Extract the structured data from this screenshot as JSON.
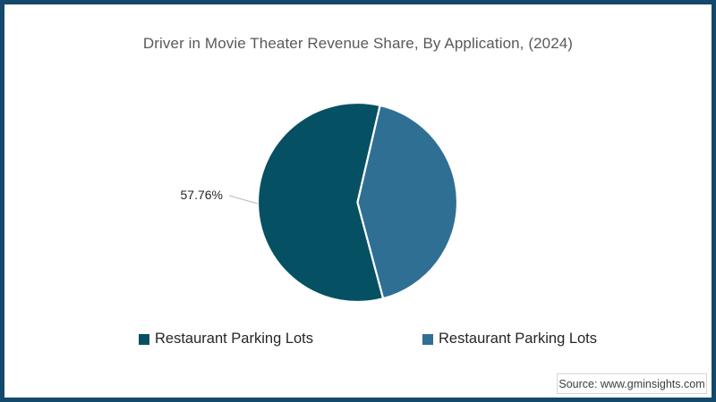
{
  "title": "Driver in Movie Theater Revenue Share, By Application, (2024)",
  "source": "Source: www.gminsights.com",
  "colors": {
    "frame_border": "#14496b",
    "title_text": "#595959",
    "legend_text": "#262626",
    "leader_line": "#b8b8b8",
    "slice_divider": "#ffffff"
  },
  "chart_data": {
    "type": "pie",
    "title": "Driver in Movie Theater Revenue Share, By Application, (2024)",
    "legend_position": "bottom",
    "start_angle_deg": 165.1,
    "slices": [
      {
        "label": "Restaurant Parking Lots",
        "value": 57.76,
        "display_label": "57.76%",
        "color": "#065064"
      },
      {
        "label": "Restaurant Parking Lots",
        "value": 42.24,
        "display_label": "",
        "color": "#2f6f94"
      }
    ]
  }
}
